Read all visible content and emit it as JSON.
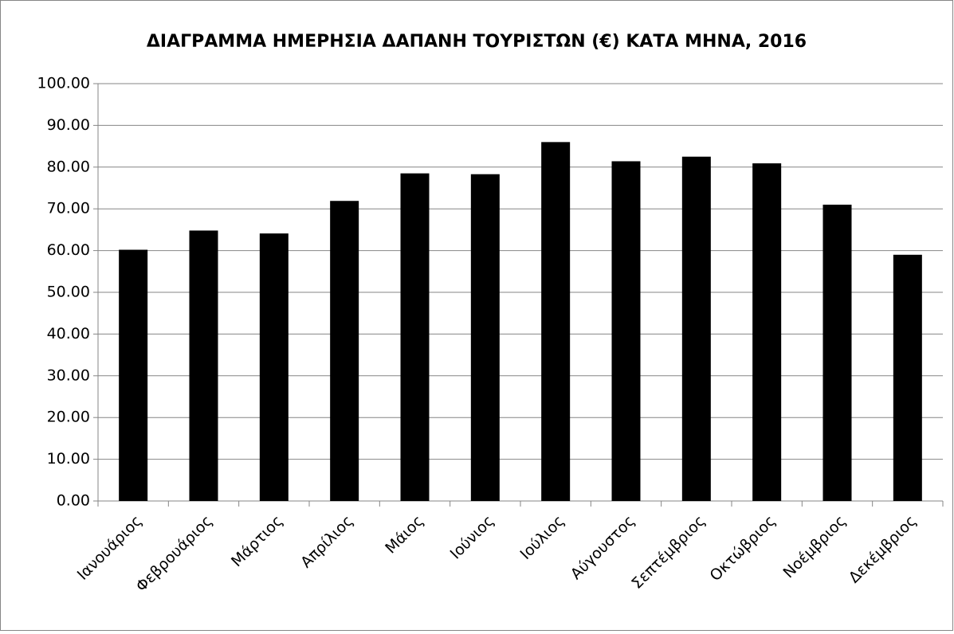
{
  "chart_data": {
    "type": "bar",
    "title": "ΔΙΑΓΡΑΜΜΑ ΗΜΕΡΗΣΙΑ ΔΑΠΑΝΗ ΤΟΥΡΙΣΤΩΝ (€) ΚΑΤΑ ΜΗΝΑ, 2016",
    "categories": [
      "Ιανουάριος",
      "Φεβρουάριος",
      "Μάρτιος",
      "Απρίλιος",
      "Μάιος",
      "Ιούνιος",
      "Ιούλιος",
      "Αύγουστος",
      "Σεπτέμβριος",
      "Οκτώβριος",
      "Νοέμβριος",
      "Δεκέμβριος"
    ],
    "values": [
      60.2,
      64.8,
      64.1,
      71.9,
      78.5,
      78.3,
      86.0,
      81.4,
      82.5,
      80.9,
      71.0,
      59.0
    ],
    "color": "#000000",
    "ylim": [
      0,
      100
    ],
    "yticks": [
      {
        "value": 0,
        "label": "0.00"
      },
      {
        "value": 10,
        "label": "10.00"
      },
      {
        "value": 20,
        "label": "20.00"
      },
      {
        "value": 30,
        "label": "30.00"
      },
      {
        "value": 40,
        "label": "40.00"
      },
      {
        "value": 50,
        "label": "50.00"
      },
      {
        "value": 60,
        "label": "60.00"
      },
      {
        "value": 70,
        "label": "70.00"
      },
      {
        "value": 80,
        "label": "80.00"
      },
      {
        "value": 90,
        "label": "90.00"
      },
      {
        "value": 100,
        "label": "100.00"
      }
    ],
    "grid": true
  }
}
